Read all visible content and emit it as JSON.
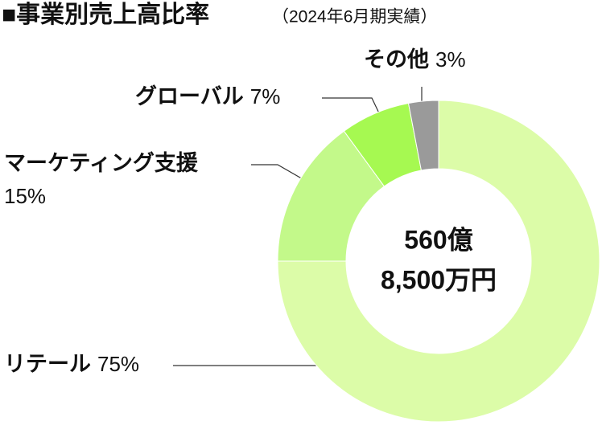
{
  "chart_data": {
    "type": "donut",
    "title": "■事業別売上高比率",
    "subtitle": "（2024年6月期実績）",
    "center_label": [
      "560億",
      "8,500万円"
    ],
    "categories": [
      "リテール",
      "マーケティング支援",
      "グローバル",
      "その他"
    ],
    "values": [
      75,
      15,
      7,
      3
    ],
    "value_labels": [
      "75%",
      "15%",
      "7%",
      "3%"
    ],
    "colors": [
      "#dcfca8",
      "#c3f98a",
      "#a6f951",
      "#9a9a9a"
    ]
  }
}
